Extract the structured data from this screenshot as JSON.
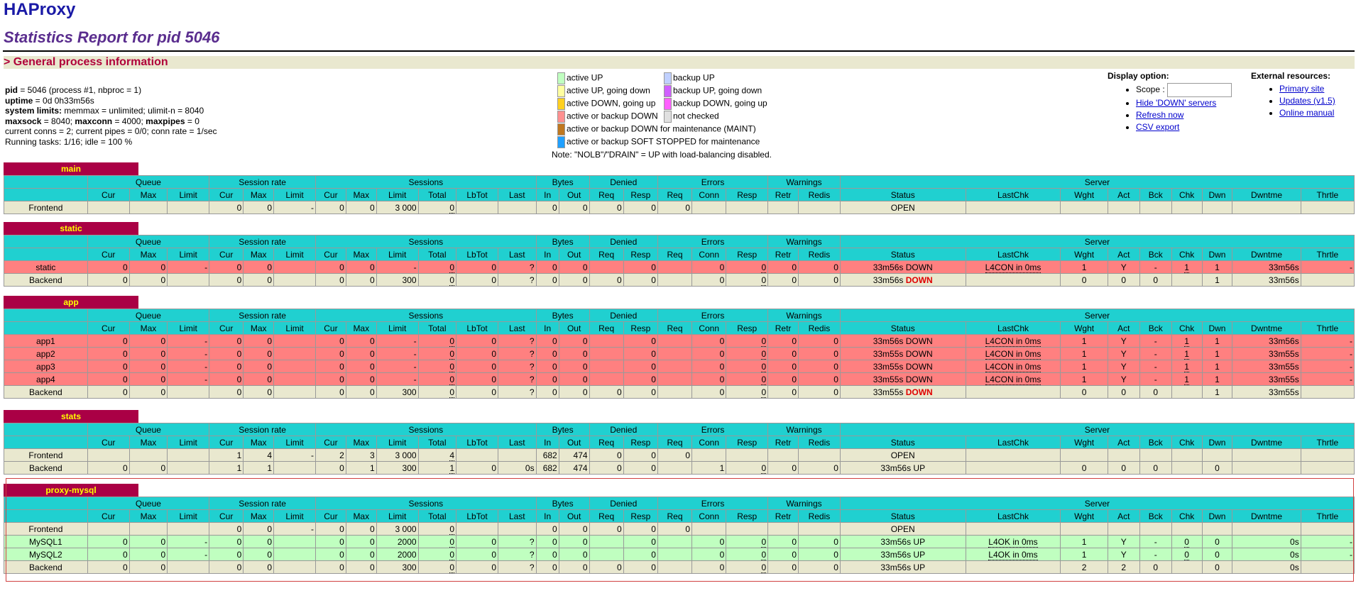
{
  "title": "HAProxy",
  "subtitle": "Statistics Report for pid 5046",
  "section": "> General process information",
  "info": {
    "pid_label": "pid",
    "pid_rest": " = 5046 (process #1, nbproc = 1)",
    "uptime_label": "uptime",
    "uptime_rest": " = 0d 0h33m56s",
    "syslim_label": "system limits:",
    "syslim_rest": " memmax = unlimited; ulimit-n = 8040",
    "maxsock_label": "maxsock",
    "maxsock_mid": " = 8040; ",
    "maxconn_label": "maxconn",
    "maxconn_mid": " = 4000; ",
    "maxpipes_label": "maxpipes",
    "maxpipes_rest": " = 0",
    "conns": "current conns = 2; current pipes = 0/0; conn rate = 1/sec",
    "tasks": "Running tasks: 1/16; idle = 100 %"
  },
  "legend": {
    "left": [
      {
        "color": "#c0ffc0",
        "label": "active UP"
      },
      {
        "color": "#ffffa0",
        "label": "active UP, going down"
      },
      {
        "color": "#ffd020",
        "label": "active DOWN, going up"
      },
      {
        "color": "#ff9090",
        "label": "active or backup DOWN"
      },
      {
        "color": "#c07820",
        "label": "active or backup DOWN for maintenance (MAINT)"
      },
      {
        "color": "#20a0ff",
        "label": "active or backup SOFT STOPPED for maintenance"
      }
    ],
    "right": [
      {
        "color": "#c0d0ff",
        "label": "backup UP"
      },
      {
        "color": "#d060ff",
        "label": "backup UP, going down"
      },
      {
        "color": "#ff60ff",
        "label": "backup DOWN, going up"
      },
      {
        "color": "#e0e0e0",
        "label": "not checked"
      }
    ],
    "note": "Note: \"NOLB\"/\"DRAIN\" = UP with load-balancing disabled."
  },
  "display": {
    "title": "Display option:",
    "scope_label": "Scope :",
    "links": [
      "Hide 'DOWN' servers",
      "Refresh now",
      "CSV export"
    ]
  },
  "external": {
    "title": "External resources:",
    "links": [
      "Primary site",
      "Updates (v1.5)",
      "Online manual"
    ]
  },
  "headers": {
    "groups": [
      "Queue",
      "Session rate",
      "Sessions",
      "Bytes",
      "Denied",
      "Errors",
      "Warnings",
      "Server"
    ],
    "cols": [
      "Cur",
      "Max",
      "Limit",
      "Cur",
      "Max",
      "Limit",
      "Cur",
      "Max",
      "Limit",
      "Total",
      "LbTot",
      "Last",
      "In",
      "Out",
      "Req",
      "Resp",
      "Req",
      "Conn",
      "Resp",
      "Retr",
      "Redis",
      "Status",
      "LastChk",
      "Wght",
      "Act",
      "Bck",
      "Chk",
      "Dwn",
      "Dwntme",
      "Thrtle"
    ]
  },
  "proxies": [
    {
      "name": "main",
      "rows": [
        {
          "type": "fe",
          "cells": [
            "Frontend",
            "",
            "",
            "",
            "0",
            "0",
            "-",
            "0",
            "0",
            "3 000",
            "0",
            "",
            "",
            "0",
            "0",
            "0",
            "0",
            "0",
            "",
            "",
            "",
            "",
            "OPEN",
            "",
            "",
            "",
            "",
            "",
            "",
            "",
            ""
          ]
        }
      ]
    },
    {
      "name": "static",
      "rows": [
        {
          "type": "dn",
          "cells": [
            "static",
            "0",
            "0",
            "-",
            "0",
            "0",
            "",
            "0",
            "0",
            "-",
            "0",
            "0",
            "?",
            "0",
            "0",
            "",
            "0",
            "",
            "0",
            "0",
            "0",
            "0",
            "33m56s DOWN",
            "L4CON in 0ms",
            "1",
            "Y",
            "-",
            "1",
            "1",
            "33m56s",
            "-"
          ]
        },
        {
          "type": "bk",
          "cells": [
            "Backend",
            "0",
            "0",
            "",
            "0",
            "0",
            "",
            "0",
            "0",
            "300",
            "0",
            "0",
            "?",
            "0",
            "0",
            "0",
            "0",
            "",
            "0",
            "0",
            "0",
            "0",
            "33m56s DOWN",
            "",
            "0",
            "0",
            "0",
            "",
            "1",
            "33m56s",
            ""
          ]
        }
      ]
    },
    {
      "name": "app",
      "rows": [
        {
          "type": "dn",
          "cells": [
            "app1",
            "0",
            "0",
            "-",
            "0",
            "0",
            "",
            "0",
            "0",
            "-",
            "0",
            "0",
            "?",
            "0",
            "0",
            "",
            "0",
            "",
            "0",
            "0",
            "0",
            "0",
            "33m56s DOWN",
            "L4CON in 0ms",
            "1",
            "Y",
            "-",
            "1",
            "1",
            "33m56s",
            "-"
          ]
        },
        {
          "type": "dn",
          "cells": [
            "app2",
            "0",
            "0",
            "-",
            "0",
            "0",
            "",
            "0",
            "0",
            "-",
            "0",
            "0",
            "?",
            "0",
            "0",
            "",
            "0",
            "",
            "0",
            "0",
            "0",
            "0",
            "33m55s DOWN",
            "L4CON in 0ms",
            "1",
            "Y",
            "-",
            "1",
            "1",
            "33m55s",
            "-"
          ]
        },
        {
          "type": "dn",
          "cells": [
            "app3",
            "0",
            "0",
            "-",
            "0",
            "0",
            "",
            "0",
            "0",
            "-",
            "0",
            "0",
            "?",
            "0",
            "0",
            "",
            "0",
            "",
            "0",
            "0",
            "0",
            "0",
            "33m55s DOWN",
            "L4CON in 0ms",
            "1",
            "Y",
            "-",
            "1",
            "1",
            "33m55s",
            "-"
          ]
        },
        {
          "type": "dn",
          "cells": [
            "app4",
            "0",
            "0",
            "-",
            "0",
            "0",
            "",
            "0",
            "0",
            "-",
            "0",
            "0",
            "?",
            "0",
            "0",
            "",
            "0",
            "",
            "0",
            "0",
            "0",
            "0",
            "33m55s DOWN",
            "L4CON in 0ms",
            "1",
            "Y",
            "-",
            "1",
            "1",
            "33m55s",
            "-"
          ]
        },
        {
          "type": "bk",
          "cells": [
            "Backend",
            "0",
            "0",
            "",
            "0",
            "0",
            "",
            "0",
            "0",
            "300",
            "0",
            "0",
            "?",
            "0",
            "0",
            "0",
            "0",
            "",
            "0",
            "0",
            "0",
            "0",
            "33m55s DOWN",
            "",
            "0",
            "0",
            "0",
            "",
            "1",
            "33m55s",
            ""
          ]
        }
      ]
    },
    {
      "name": "stats",
      "rows": [
        {
          "type": "fe",
          "cells": [
            "Frontend",
            "",
            "",
            "",
            "1",
            "4",
            "-",
            "2",
            "3",
            "3 000",
            "4",
            "",
            "",
            "682",
            "474",
            "0",
            "0",
            "0",
            "",
            "",
            "",
            "",
            "OPEN",
            "",
            "",
            "",
            "",
            "",
            "",
            "",
            ""
          ]
        },
        {
          "type": "bk",
          "cells": [
            "Backend",
            "0",
            "0",
            "",
            "1",
            "1",
            "",
            "0",
            "1",
            "300",
            "1",
            "0",
            "0s",
            "682",
            "474",
            "0",
            "0",
            "",
            "1",
            "0",
            "0",
            "0",
            "33m56s UP",
            "",
            "0",
            "0",
            "0",
            "",
            "0",
            "",
            ""
          ]
        }
      ]
    },
    {
      "name": "proxy-mysql",
      "rows": [
        {
          "type": "fe",
          "cells": [
            "Frontend",
            "",
            "",
            "",
            "0",
            "0",
            "-",
            "0",
            "0",
            "3 000",
            "0",
            "",
            "",
            "0",
            "0",
            "0",
            "0",
            "0",
            "",
            "",
            "",
            "",
            "OPEN",
            "",
            "",
            "",
            "",
            "",
            "",
            "",
            ""
          ]
        },
        {
          "type": "up",
          "cells": [
            "MySQL1",
            "0",
            "0",
            "-",
            "0",
            "0",
            "",
            "0",
            "0",
            "2000",
            "0",
            "0",
            "?",
            "0",
            "0",
            "",
            "0",
            "",
            "0",
            "0",
            "0",
            "0",
            "33m56s UP",
            "L4OK in 0ms",
            "1",
            "Y",
            "-",
            "0",
            "0",
            "0s",
            "-"
          ]
        },
        {
          "type": "up",
          "cells": [
            "MySQL2",
            "0",
            "0",
            "-",
            "0",
            "0",
            "",
            "0",
            "0",
            "2000",
            "0",
            "0",
            "?",
            "0",
            "0",
            "",
            "0",
            "",
            "0",
            "0",
            "0",
            "0",
            "33m56s UP",
            "L4OK in 0ms",
            "1",
            "Y",
            "-",
            "0",
            "0",
            "0s",
            "-"
          ]
        },
        {
          "type": "bk",
          "cells": [
            "Backend",
            "0",
            "0",
            "",
            "0",
            "0",
            "",
            "0",
            "0",
            "300",
            "0",
            "0",
            "?",
            "0",
            "0",
            "0",
            "0",
            "",
            "0",
            "0",
            "0",
            "0",
            "33m56s UP",
            "",
            "2",
            "2",
            "0",
            "",
            "0",
            "0s",
            ""
          ]
        }
      ]
    }
  ]
}
